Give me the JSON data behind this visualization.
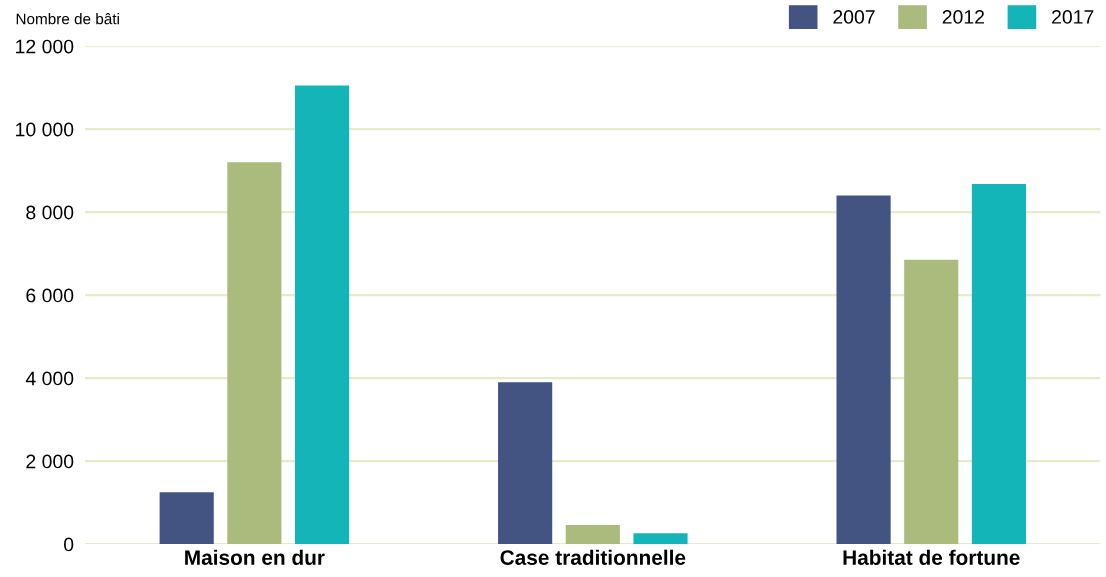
{
  "chart_data": {
    "type": "bar",
    "ylabel": "Nombre de bâti",
    "categories": [
      "Maison en dur",
      "Case traditionnelle",
      "Habitat de fortune"
    ],
    "series": [
      {
        "name": "2007",
        "color": "#435483",
        "values": [
          1250,
          3900,
          8400
        ]
      },
      {
        "name": "2012",
        "color": "#abbb7d",
        "values": [
          9200,
          460,
          6850
        ]
      },
      {
        "name": "2017",
        "color": "#14b5b9",
        "values": [
          11050,
          260,
          8680
        ]
      }
    ],
    "ylim": [
      0,
      12000
    ],
    "yticks": [
      0,
      {
        "value": 2000,
        "label": "2 000"
      },
      {
        "value": 4000,
        "label": "4 000"
      },
      {
        "value": 6000,
        "label": "6 000"
      },
      {
        "value": 8000,
        "label": "8 000"
      },
      {
        "value": 10000,
        "label": "10 000"
      },
      {
        "value": 12000,
        "label": "12 000"
      }
    ],
    "grid": "y",
    "legend": "top right"
  }
}
